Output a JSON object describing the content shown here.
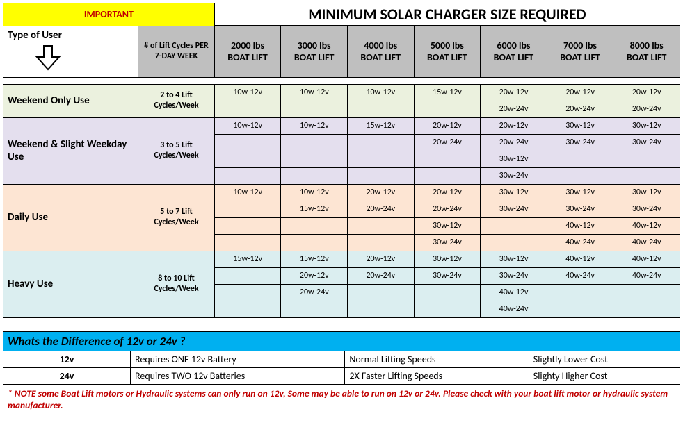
{
  "header": {
    "important": "IMPORTANT",
    "title": "MINIMUM SOLAR CHARGER SIZE REQUIRED",
    "type_of_user": "Type of User",
    "lift_cycles": "# of Lift Cycles PER 7-DAY WEEK"
  },
  "columns": [
    {
      "lbs": "2000 lbs",
      "label": "BOAT LIFT"
    },
    {
      "lbs": "3000 lbs",
      "label": "BOAT LIFT"
    },
    {
      "lbs": "4000 lbs",
      "label": "BOAT LIFT"
    },
    {
      "lbs": "5000 lbs",
      "label": "BOAT LIFT"
    },
    {
      "lbs": "6000 lbs",
      "label": "BOAT LIFT"
    },
    {
      "lbs": "7000 lbs",
      "label": "BOAT LIFT"
    },
    {
      "lbs": "8000 lbs",
      "label": "BOAT LIFT"
    }
  ],
  "colors": {
    "weekend": "#ebf1de",
    "slight": "#e4dfee",
    "daily": "#fde5d3",
    "heavy": "#dbeef0",
    "important_bg": "#ffff00",
    "important_fg": "#c00000",
    "column_head_bg": "#bfbfbf",
    "info_head_bg": "#00b0f0",
    "note_fg": "#c00000"
  },
  "sections": [
    {
      "key": "weekend",
      "label": "Weekend Only Use",
      "cycles": "2 to 4 Lift Cycles/Week",
      "bg_class": "bg-weekend",
      "rows": [
        [
          "10w-12v",
          "10w-12v",
          "10w-12v",
          "15w-12v",
          "20w-12v",
          "20w-12v",
          "20w-12v"
        ],
        [
          "",
          "",
          "",
          "",
          "20w-24v",
          "20w-24v",
          "20w-24v"
        ]
      ]
    },
    {
      "key": "slight",
      "label": "Weekend & Slight Weekday Use",
      "cycles": "3 to 5 Lift Cycles/Week",
      "bg_class": "bg-slight",
      "rows": [
        [
          "10w-12v",
          "10w-12v",
          "15w-12v",
          "20w-12v",
          "20w-12v",
          "30w-12v",
          "30w-12v"
        ],
        [
          "",
          "",
          "",
          "20w-24v",
          "20w-24v",
          "30w-24v",
          "30w-24v"
        ],
        [
          "",
          "",
          "",
          "",
          "30w-12v",
          "",
          ""
        ],
        [
          "",
          "",
          "",
          "",
          "30w-24v",
          "",
          ""
        ]
      ]
    },
    {
      "key": "daily",
      "label": "Daily Use",
      "cycles": "5 to 7 Lift Cycles/Week",
      "bg_class": "bg-daily",
      "rows": [
        [
          "10w-12v",
          "10w-12v",
          "20w-12v",
          "20w-12v",
          "30w-12v",
          "30w-12v",
          "30w-12v"
        ],
        [
          "",
          "15w-12v",
          "20w-24v",
          "20w-24v",
          "30w-24v",
          "30w-24v",
          "30w-24v"
        ],
        [
          "",
          "",
          "",
          "30w-12v",
          "",
          "40w-12v",
          "40w-12v"
        ],
        [
          "",
          "",
          "",
          "30w-24v",
          "",
          "40w-24v",
          "40w-24v"
        ]
      ]
    },
    {
      "key": "heavy",
      "label": "Heavy Use",
      "cycles": "8 to 10 Lift Cycles/Week",
      "bg_class": "bg-heavy",
      "rows": [
        [
          "15w-12v",
          "15w-12v",
          "20w-12v",
          "30w-12v",
          "30w-12v",
          "40w-12v",
          "40w-12v"
        ],
        [
          "",
          "20w-12v",
          "20w-24v",
          "30w-24v",
          "30w-24v",
          "40w-24v",
          "40w-24v"
        ],
        [
          "",
          "20w-24v",
          "",
          "",
          "40w-12v",
          "",
          ""
        ],
        [
          "",
          "",
          "",
          "",
          "40w-24v",
          "",
          ""
        ]
      ]
    }
  ],
  "info": {
    "heading": "Whats the Difference of 12v or 24v ?",
    "rows": [
      {
        "volt": "12v",
        "battery": "Requires ONE 12v Battery",
        "speed": "Normal Lifting Speeds",
        "cost": "Slightly Lower Cost"
      },
      {
        "volt": "24v",
        "battery": "Requires TWO 12v Batteries",
        "speed": "2X Faster Lifting Speeds",
        "cost": "Slighty Higher Cost"
      }
    ],
    "note": "* NOTE some Boat Lift motors or Hydraulic systems can only run on 12v, Some may be able to run on 12v or 24v. Please check with your boat lift motor or hydraulic system manufacturer."
  }
}
